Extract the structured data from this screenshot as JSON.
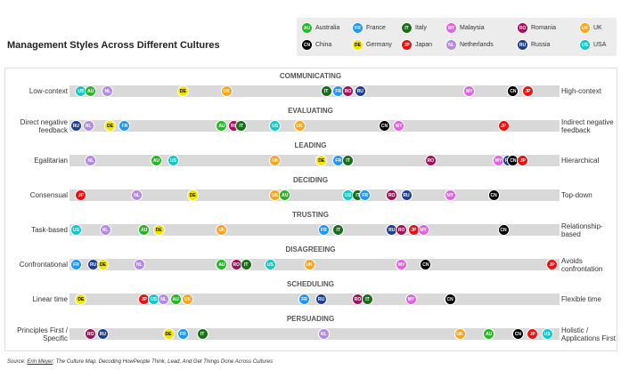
{
  "chart_data": {
    "type": "culture-map",
    "title": "Management Styles Across Different Cultures",
    "xlim": [
      0,
      100
    ],
    "legend": [
      {
        "code": "AU",
        "name": "Australia",
        "color": "#2bb52b"
      },
      {
        "code": "FR",
        "name": "France",
        "color": "#2196f3"
      },
      {
        "code": "IT",
        "name": "Italy",
        "color": "#1b6e1b"
      },
      {
        "code": "MY",
        "name": "Malaysia",
        "color": "#e064e0"
      },
      {
        "code": "RO",
        "name": "Romania",
        "color": "#a0125a"
      },
      {
        "code": "UK",
        "name": "UK",
        "color": "#f5a623"
      },
      {
        "code": "CN",
        "name": "China",
        "color": "#000000"
      },
      {
        "code": "DE",
        "name": "Germany",
        "color": "#f2e600"
      },
      {
        "code": "JP",
        "name": "Japan",
        "color": "#ee1111"
      },
      {
        "code": "NL",
        "name": "Netherlands",
        "color": "#b48be0"
      },
      {
        "code": "RU",
        "name": "Russia",
        "color": "#1f3f8f"
      },
      {
        "code": "US",
        "name": "USA",
        "color": "#14c8c8"
      }
    ],
    "scales": [
      {
        "name": "COMMUNICATING",
        "left": "Low-context",
        "right": "High-context",
        "points": [
          {
            "code": "US",
            "value": 2
          },
          {
            "code": "AU",
            "value": 4
          },
          {
            "code": "NL",
            "value": 7.5
          },
          {
            "code": "DE",
            "value": 23
          },
          {
            "code": "UK",
            "value": 32
          },
          {
            "code": "IT",
            "value": 52.5
          },
          {
            "code": "FR",
            "value": 55
          },
          {
            "code": "RO",
            "value": 57
          },
          {
            "code": "RU",
            "value": 59.5
          },
          {
            "code": "MY",
            "value": 82
          },
          {
            "code": "CN",
            "value": 91
          },
          {
            "code": "JP",
            "value": 94
          }
        ]
      },
      {
        "name": "EVALUATING",
        "left": "Direct negative feedback",
        "right": "Indirect negative feedback",
        "points": [
          {
            "code": "RU",
            "value": 1
          },
          {
            "code": "NL",
            "value": 3.5
          },
          {
            "code": "DE",
            "value": 8
          },
          {
            "code": "FR",
            "value": 11
          },
          {
            "code": "AU",
            "value": 31
          },
          {
            "code": "RO",
            "value": 33.5
          },
          {
            "code": "IT",
            "value": 35
          },
          {
            "code": "US",
            "value": 42
          },
          {
            "code": "UK",
            "value": 47
          },
          {
            "code": "CN",
            "value": 64.5
          },
          {
            "code": "MY",
            "value": 67.5
          },
          {
            "code": "JP",
            "value": 89
          }
        ]
      },
      {
        "name": "LEADING",
        "left": "Egalitarian",
        "right": "Hierarchical",
        "points": [
          {
            "code": "NL",
            "value": 4
          },
          {
            "code": "AU",
            "value": 17.5
          },
          {
            "code": "US",
            "value": 21
          },
          {
            "code": "UK",
            "value": 42
          },
          {
            "code": "DE",
            "value": 51.5
          },
          {
            "code": "FR",
            "value": 55
          },
          {
            "code": "IT",
            "value": 57
          },
          {
            "code": "RO",
            "value": 74
          },
          {
            "code": "MY",
            "value": 88
          },
          {
            "code": "RU",
            "value": 90
          },
          {
            "code": "CN",
            "value": 91
          },
          {
            "code": "JP",
            "value": 93
          }
        ]
      },
      {
        "name": "DECIDING",
        "left": "Consensual",
        "right": "Top-down",
        "points": [
          {
            "code": "JP",
            "value": 2
          },
          {
            "code": "NL",
            "value": 13.5
          },
          {
            "code": "DE",
            "value": 25
          },
          {
            "code": "UK",
            "value": 42
          },
          {
            "code": "AU",
            "value": 44
          },
          {
            "code": "US",
            "value": 57
          },
          {
            "code": "IT",
            "value": 59
          },
          {
            "code": "FR",
            "value": 60.5
          },
          {
            "code": "RO",
            "value": 66
          },
          {
            "code": "RU",
            "value": 69
          },
          {
            "code": "MY",
            "value": 78
          },
          {
            "code": "CN",
            "value": 87
          }
        ]
      },
      {
        "name": "TRUSTING",
        "left": "Task-based",
        "right": "Relationship-based",
        "points": [
          {
            "code": "US",
            "value": 1
          },
          {
            "code": "NL",
            "value": 7
          },
          {
            "code": "AU",
            "value": 15
          },
          {
            "code": "DE",
            "value": 18
          },
          {
            "code": "UK",
            "value": 31
          },
          {
            "code": "FR",
            "value": 52
          },
          {
            "code": "IT",
            "value": 55
          },
          {
            "code": "RU",
            "value": 66
          },
          {
            "code": "RO",
            "value": 68
          },
          {
            "code": "JP",
            "value": 70.5
          },
          {
            "code": "MY",
            "value": 72.5
          },
          {
            "code": "CN",
            "value": 89
          }
        ]
      },
      {
        "name": "DISAGREEING",
        "left": "Confrontational",
        "right": "Avoids confrontation",
        "points": [
          {
            "code": "FR",
            "value": 1
          },
          {
            "code": "RU",
            "value": 4.5
          },
          {
            "code": "DE",
            "value": 6.5
          },
          {
            "code": "NL",
            "value": 14
          },
          {
            "code": "AU",
            "value": 31
          },
          {
            "code": "RO",
            "value": 34
          },
          {
            "code": "IT",
            "value": 36
          },
          {
            "code": "US",
            "value": 41
          },
          {
            "code": "UK",
            "value": 49
          },
          {
            "code": "MY",
            "value": 68
          },
          {
            "code": "CN",
            "value": 73
          },
          {
            "code": "JP",
            "value": 99
          }
        ]
      },
      {
        "name": "SCHEDULING",
        "left": "Linear time",
        "right": "Flexible time",
        "points": [
          {
            "code": "DE",
            "value": 2
          },
          {
            "code": "JP",
            "value": 15
          },
          {
            "code": "US",
            "value": 17
          },
          {
            "code": "NL",
            "value": 19
          },
          {
            "code": "AU",
            "value": 21.5
          },
          {
            "code": "UK",
            "value": 24
          },
          {
            "code": "FR",
            "value": 48
          },
          {
            "code": "RU",
            "value": 51.5
          },
          {
            "code": "RO",
            "value": 59
          },
          {
            "code": "IT",
            "value": 61
          },
          {
            "code": "MY",
            "value": 70
          },
          {
            "code": "CN",
            "value": 78
          }
        ]
      },
      {
        "name": "PERSUADING",
        "left": "Principles First / Specific",
        "right": "Holistic / Applications First",
        "points": [
          {
            "code": "RO",
            "value": 4
          },
          {
            "code": "RU",
            "value": 6.5
          },
          {
            "code": "DE",
            "value": 20
          },
          {
            "code": "FR",
            "value": 23
          },
          {
            "code": "IT",
            "value": 27
          },
          {
            "code": "NL",
            "value": 52
          },
          {
            "code": "UK",
            "value": 80
          },
          {
            "code": "AU",
            "value": 86
          },
          {
            "code": "CN",
            "value": 92
          },
          {
            "code": "JP",
            "value": 95
          },
          {
            "code": "US",
            "value": 98
          }
        ]
      }
    ],
    "source": {
      "prefix": "Source:",
      "author": "Erin Meyer",
      "work": "The Culture Map. Decoding HowPeople Think, Lead, And Get Things Done Across Cultures"
    }
  }
}
